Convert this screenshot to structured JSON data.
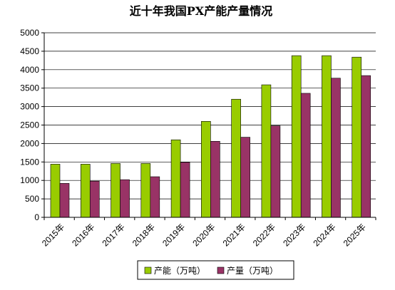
{
  "chart_data": {
    "type": "bar",
    "title": "近十年我国PX产能产量情况",
    "categories": [
      "2015年",
      "2016年",
      "2017年",
      "2018年",
      "2019年",
      "2020年",
      "2021年",
      "2022年",
      "2023年",
      "2024年",
      "2025年"
    ],
    "series": [
      {
        "name": "产能（万吨）",
        "color": "#99cc00",
        "values": [
          1440,
          1440,
          1460,
          1460,
          2100,
          2600,
          3200,
          3590,
          4380,
          4380,
          4340
        ]
      },
      {
        "name": "产量（万吨）",
        "color": "#993366",
        "values": [
          920,
          980,
          1020,
          1100,
          1490,
          2060,
          2170,
          2480,
          3360,
          3770,
          3840
        ]
      }
    ],
    "yticks": [
      "0",
      "500",
      "1000",
      "1500",
      "2000",
      "2500",
      "3000",
      "3500",
      "4000",
      "4500",
      "5000"
    ],
    "ylim": [
      0,
      5000
    ],
    "grid": true,
    "legend_position": "bottom"
  }
}
